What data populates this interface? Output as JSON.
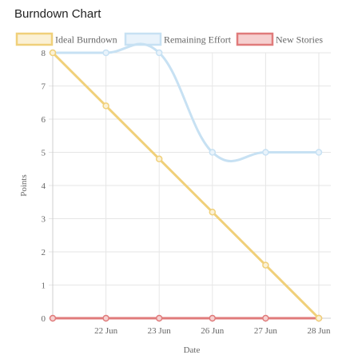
{
  "page": {
    "title": "Burndown Chart"
  },
  "chart_data": {
    "type": "line",
    "title": "Burndown Chart",
    "x": [
      "",
      "22 Jun",
      "23 Jun",
      "26 Jun",
      "27 Jun",
      "28 Jun"
    ],
    "xlabel": "Date",
    "ylabel": "Points",
    "ylim": [
      0,
      8
    ],
    "yticks": [
      "0",
      "1",
      "2",
      "3",
      "4",
      "5",
      "6",
      "7",
      "8"
    ],
    "grid": true,
    "legend_position": "top",
    "series": [
      {
        "name": "Ideal Burndown",
        "values": [
          8,
          6.4,
          4.8,
          3.2,
          1.6,
          0
        ],
        "color": "#f0d07a",
        "fill": "#fbf1d5",
        "smooth": false
      },
      {
        "name": "Remaining Effort",
        "values": [
          8,
          8,
          8,
          5,
          5,
          5
        ],
        "color": "#c7e1f3",
        "fill": "#e9f3fb",
        "smooth": true
      },
      {
        "name": "New Stories",
        "values": [
          0,
          0,
          0,
          0,
          0,
          0
        ],
        "color": "#e07b7b",
        "fill": "#f6d0d0",
        "smooth": false
      }
    ]
  }
}
